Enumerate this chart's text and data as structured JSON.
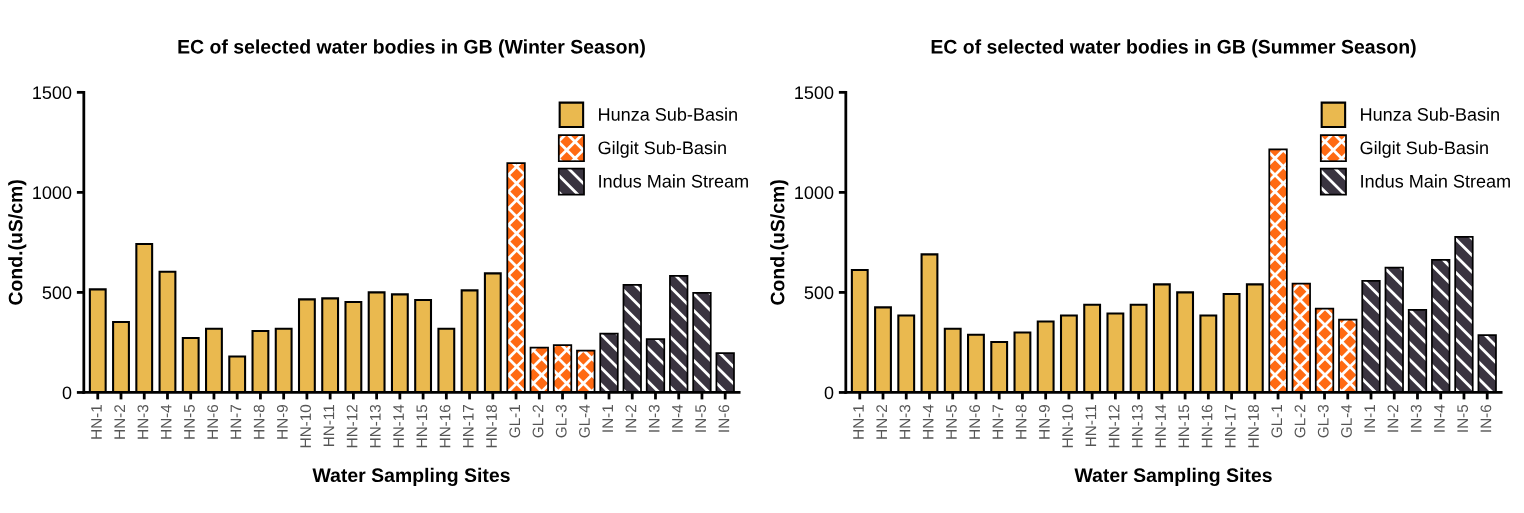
{
  "chart_data": [
    {
      "type": "bar",
      "title": "EC of selected water bodies in GB (Winter Season)",
      "xlabel": "Water Sampling Sites",
      "ylabel": "Cond.(uS/cm)",
      "categories": [
        "HN-1",
        "HN-2",
        "HN-3",
        "HN-4",
        "HN-5",
        "HN-6",
        "HN-7",
        "HN-8",
        "HN-9",
        "HN-10",
        "HN-11",
        "HN-12",
        "HN-13",
        "HN-14",
        "HN-15",
        "HN-16",
        "HN-17",
        "HN-18",
        "GL-1",
        "GL-2",
        "GL-3",
        "GL-4",
        "IN-1",
        "IN-2",
        "IN-3",
        "IN-4",
        "IN-5",
        "IN-6"
      ],
      "series": [
        {
          "name": "Hunza Sub-Basin",
          "color": "#eab94f",
          "values": [
            515,
            352,
            742,
            603,
            272,
            318,
            180,
            307,
            318,
            465,
            470,
            452,
            500,
            490,
            462,
            318,
            510,
            595,
            null,
            null,
            null,
            null,
            null,
            null,
            null,
            null,
            null,
            null
          ]
        },
        {
          "name": "Gilgit Sub-Basin",
          "color": "#ff6a13",
          "values": [
            null,
            null,
            null,
            null,
            null,
            null,
            null,
            null,
            null,
            null,
            null,
            null,
            null,
            null,
            null,
            null,
            null,
            null,
            1142,
            220,
            232,
            205,
            null,
            null,
            null,
            null,
            null,
            null
          ]
        },
        {
          "name": "Indus Main Stream",
          "color": "#3a3440",
          "values": [
            null,
            null,
            null,
            null,
            null,
            null,
            null,
            null,
            null,
            null,
            null,
            null,
            null,
            null,
            null,
            null,
            null,
            null,
            null,
            null,
            null,
            null,
            290,
            533,
            262,
            578,
            493,
            192
          ]
        }
      ],
      "ylim": [
        0,
        1500
      ],
      "yticks": [
        0,
        500,
        1000,
        1500
      ],
      "legend": "top right",
      "grid": false
    },
    {
      "type": "bar",
      "title": "EC of selected water bodies in GB (Summer Season)",
      "xlabel": "Water Sampling Sites",
      "ylabel": "Cond.(uS/cm)",
      "categories": [
        "HN-1",
        "HN-2",
        "HN-3",
        "HN-4",
        "HN-5",
        "HN-6",
        "HN-7",
        "HN-8",
        "HN-9",
        "HN-10",
        "HN-11",
        "HN-12",
        "HN-13",
        "HN-14",
        "HN-15",
        "HN-16",
        "HN-17",
        "HN-18",
        "GL-1",
        "GL-2",
        "GL-3",
        "GL-4",
        "IN-1",
        "IN-2",
        "IN-3",
        "IN-4",
        "IN-5",
        "IN-6"
      ],
      "series": [
        {
          "name": "Hunza Sub-Basin",
          "color": "#eab94f",
          "values": [
            612,
            425,
            385,
            690,
            318,
            288,
            252,
            300,
            355,
            385,
            438,
            395,
            438,
            540,
            500,
            385,
            492,
            540,
            null,
            null,
            null,
            null,
            null,
            null,
            null,
            null,
            null,
            null
          ]
        },
        {
          "name": "Gilgit Sub-Basin",
          "color": "#ff6a13",
          "values": [
            null,
            null,
            null,
            null,
            null,
            null,
            null,
            null,
            null,
            null,
            null,
            null,
            null,
            null,
            null,
            null,
            null,
            null,
            1210,
            540,
            415,
            360,
            null,
            null,
            null,
            null,
            null,
            null
          ]
        },
        {
          "name": "Indus Main Stream",
          "color": "#3a3440",
          "values": [
            null,
            null,
            null,
            null,
            null,
            null,
            null,
            null,
            null,
            null,
            null,
            null,
            null,
            null,
            null,
            null,
            null,
            null,
            null,
            null,
            null,
            null,
            553,
            620,
            408,
            658,
            773,
            282
          ]
        }
      ],
      "ylim": [
        0,
        1500
      ],
      "yticks": [
        0,
        500,
        1000,
        1500
      ],
      "legend": "top right",
      "grid": false
    }
  ]
}
